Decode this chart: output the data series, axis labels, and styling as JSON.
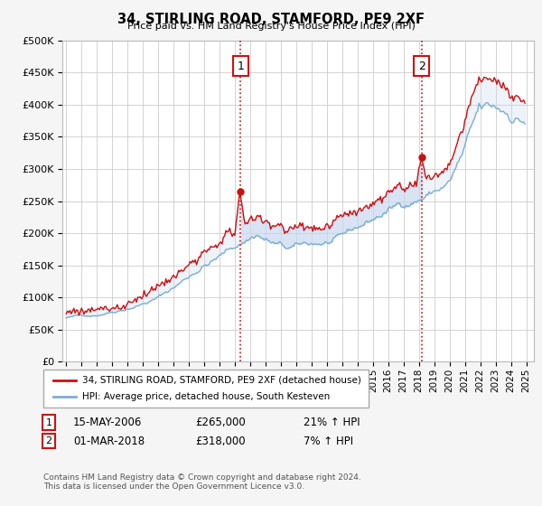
{
  "title": "34, STIRLING ROAD, STAMFORD, PE9 2XF",
  "subtitle": "Price paid vs. HM Land Registry's House Price Index (HPI)",
  "ytick_values": [
    0,
    50000,
    100000,
    150000,
    200000,
    250000,
    300000,
    350000,
    400000,
    450000,
    500000
  ],
  "ylim": [
    0,
    500000
  ],
  "xlim_start": 1994.75,
  "xlim_end": 2025.5,
  "hpi_color": "#7bafd4",
  "price_color": "#cc1111",
  "fill_color": "#c8d8ee",
  "vline_color": "#cc1111",
  "marker1_x": 2006.37,
  "marker1_y": 265000,
  "marker2_x": 2018.17,
  "marker2_y": 318000,
  "legend_price_label": "34, STIRLING ROAD, STAMFORD, PE9 2XF (detached house)",
  "legend_hpi_label": "HPI: Average price, detached house, South Kesteven",
  "footnote": "Contains HM Land Registry data © Crown copyright and database right 2024.\nThis data is licensed under the Open Government Licence v3.0.",
  "bg_color": "#f5f5f5",
  "plot_bg_color": "#ffffff",
  "grid_color": "#cccccc"
}
